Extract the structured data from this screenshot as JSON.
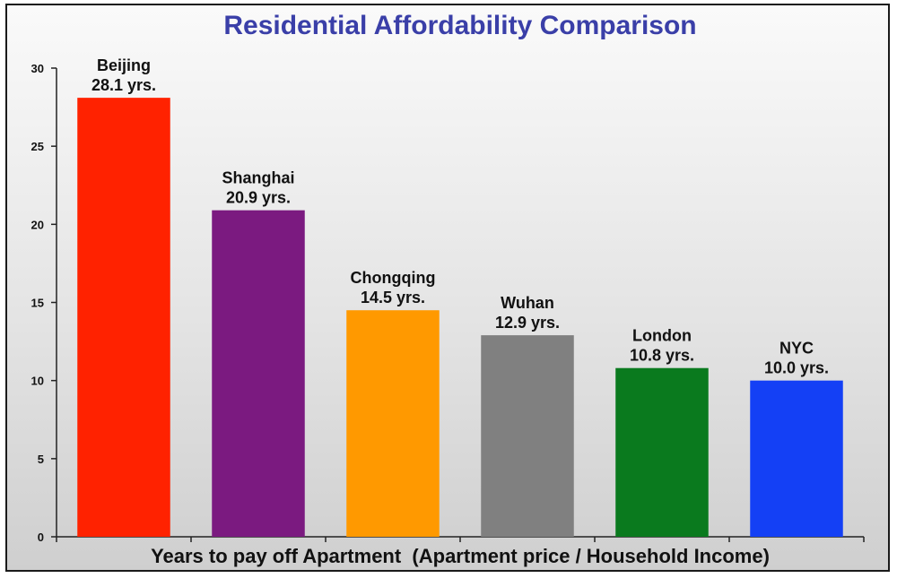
{
  "chart_data": {
    "type": "bar",
    "title": "Residential Affordability Comparison",
    "xlabel": "Years to pay off Apartment  (Apartment price / Household Income)",
    "ylabel": "",
    "ylim": [
      0,
      30
    ],
    "yticks": [
      0,
      5,
      10,
      15,
      20,
      25,
      30
    ],
    "grid": false,
    "legend": "none",
    "categories": [
      "Beijing",
      "Shanghai",
      "Chongqing",
      "Wuhan",
      "London",
      "NYC"
    ],
    "values": [
      28.1,
      20.9,
      14.5,
      12.9,
      10.8,
      10.0
    ],
    "value_labels": [
      "28.1 yrs.",
      "20.9 yrs.",
      "14.5 yrs.",
      "12.9 yrs.",
      "10.8 yrs.",
      "10.0 yrs."
    ],
    "colors": [
      "#ff2200",
      "#7b1a80",
      "#ff9900",
      "#808080",
      "#0a7a1e",
      "#1440f5"
    ]
  }
}
